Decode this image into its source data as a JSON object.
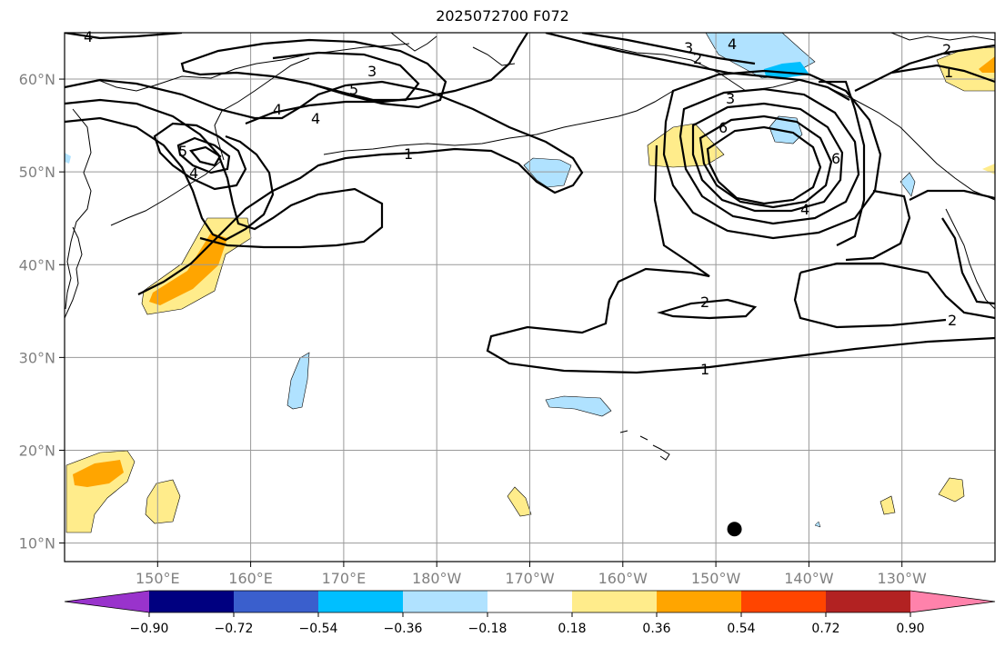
{
  "title": "2025072700 F072",
  "map": {
    "projection": "PlateCarree",
    "lon_range": [
      140,
      240
    ],
    "lat_range": [
      8,
      65
    ],
    "gridlines": true,
    "lon_tick_labels": [
      "150°E",
      "160°E",
      "170°E",
      "180°W",
      "170°W",
      "160°W",
      "150°W",
      "140°W",
      "130°W"
    ],
    "lat_tick_labels": [
      "10°N",
      "20°N",
      "30°N",
      "40°N",
      "50°N",
      "60°N"
    ],
    "marker": {
      "name": "point",
      "lon": 212,
      "lat": 11.5,
      "color": "#000000"
    }
  },
  "colorbar": {
    "tick_labels": [
      "−0.90",
      "−0.72",
      "−0.54",
      "−0.36",
      "−0.18",
      "0.18",
      "0.36",
      "0.54",
      "0.72",
      "0.90"
    ],
    "colors": [
      "#9933cc",
      "#000080",
      "#3a5fcd",
      "#00bfff",
      "#b0e2ff",
      "#ffffff",
      "#ffec8b",
      "#ffa500",
      "#ff4500",
      "#b22222",
      "#ff82ab"
    ],
    "extend": "both"
  },
  "contour_labels": [
    "4",
    "3",
    "5",
    "4",
    "1",
    "5",
    "4",
    "4",
    "3",
    "4",
    "2",
    "3",
    "6",
    "6",
    "4",
    "2",
    "1",
    "2",
    "2",
    "1"
  ]
}
